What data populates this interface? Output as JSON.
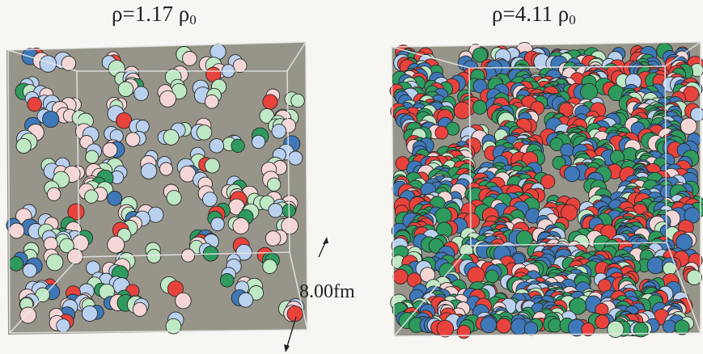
{
  "panels": [
    {
      "title_main": "ρ=1.17 ρ",
      "title_sub": "0",
      "density_factor": 1.17,
      "particle_count": 170,
      "seed": 7
    },
    {
      "title_main": "ρ=4.11 ρ",
      "title_sub": "0",
      "density_factor": 4.11,
      "particle_count": 620,
      "seed": 13
    }
  ],
  "scale_label": "8.00fm",
  "colors": {
    "box_fill": "#8e8c80",
    "box_edge": "#e8e8e8",
    "particles": [
      "#e8423c",
      "#3e78b8",
      "#2e9a5e",
      "#f4d6d6",
      "#b9d0ee",
      "#bfe8c4"
    ]
  }
}
